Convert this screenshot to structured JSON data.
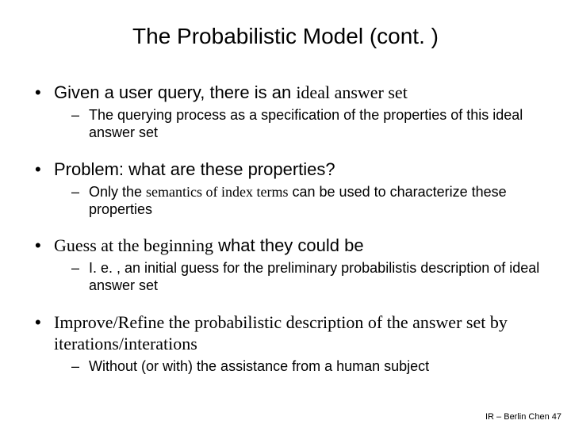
{
  "colors": {
    "background": "#ffffff",
    "text": "#000000"
  },
  "typography": {
    "title_fontsize": 28,
    "level1_fontsize": 22,
    "level2_fontsize": 18,
    "footer_fontsize": 11,
    "base_font": "Arial",
    "alt_font": "Comic Sans MS"
  },
  "title": "The Probabilistic Model (cont. )",
  "b1": {
    "l1_pre": "Given a user query, there is an ",
    "l1_alt": "ideal answer set",
    "sub": "The querying process as a specification of the properties of this ideal answer set"
  },
  "b2": {
    "l1": "Problem: what are these properties?",
    "sub_pre": "Only the ",
    "sub_alt": "semantics of index terms",
    "sub_post": " can be used to characterize these properties"
  },
  "b3": {
    "l1_alt": "Guess at the beginning",
    "l1_post": " what they could be",
    "sub": "I. e. , an initial guess for the preliminary probabilistis description of ideal answer set"
  },
  "b4": {
    "l1_alt": "Improve/Refine the probabilistic description of the answer set by iterations/interations",
    "sub": "Without (or with) the assistance from a human subject"
  },
  "footer": "IR – Berlin Chen 47"
}
